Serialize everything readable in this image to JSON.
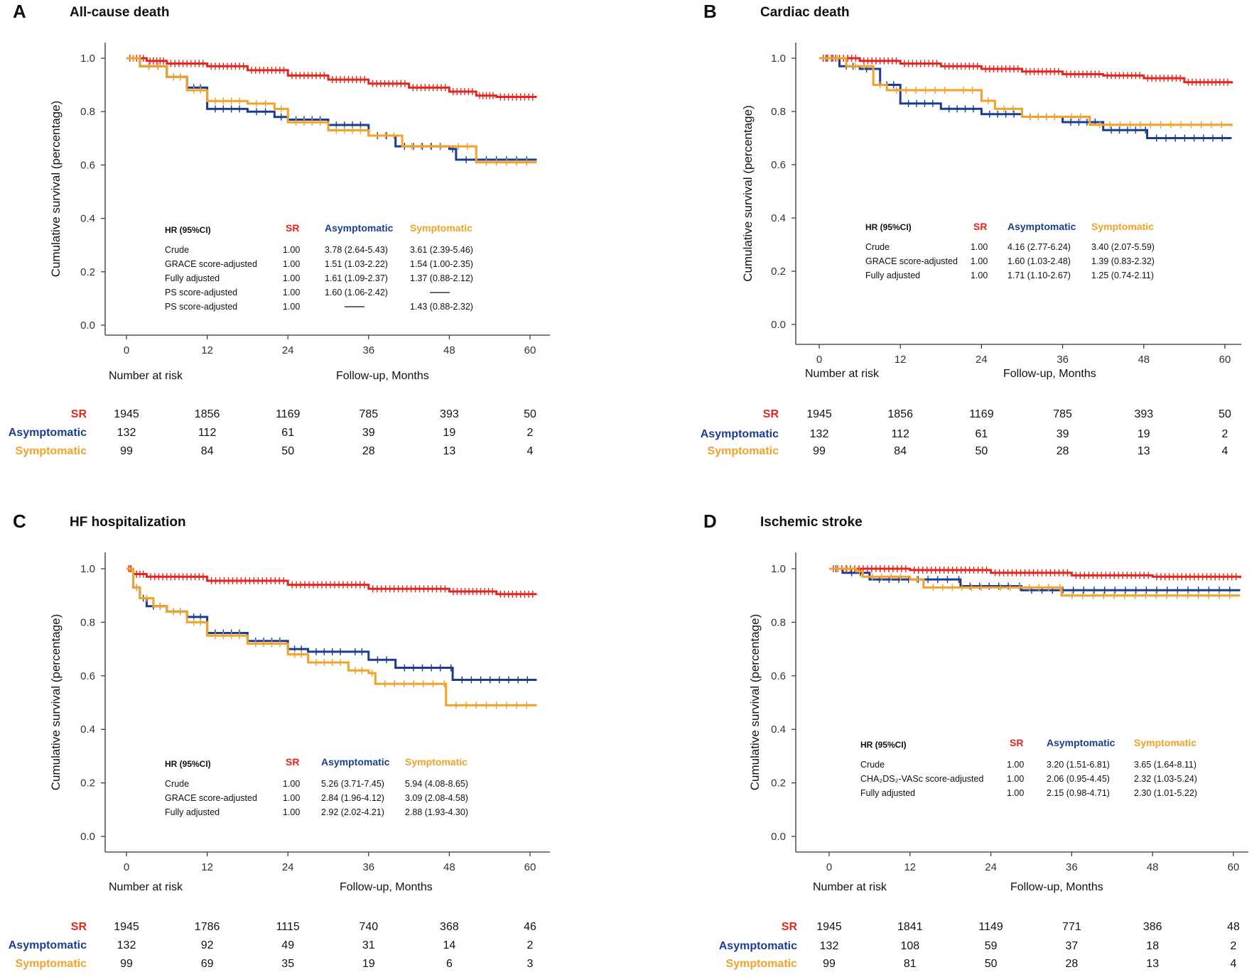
{
  "colors": {
    "SR": "#e4261f",
    "Asymptomatic": "#1c3d92",
    "Symptomatic": "#f2a228",
    "axis": "#333333"
  },
  "chart_data": [
    {
      "type": "line",
      "panel": "A",
      "title": "All-cause death",
      "ylabel": "Cumulative survival (percentage)",
      "xlabel": "Follow-up, Months",
      "ylim": [
        0,
        1
      ],
      "xlim": [
        0,
        60
      ],
      "yticks": [
        "0.0",
        "0.2",
        "0.4",
        "0.6",
        "0.8",
        "1.0"
      ],
      "xticks": [
        "0",
        "12",
        "24",
        "36",
        "48",
        "60"
      ],
      "series": [
        {
          "name": "SR",
          "key": "SR",
          "points": [
            [
              0,
              1
            ],
            [
              3,
              0.99
            ],
            [
              6,
              0.98
            ],
            [
              12,
              0.97
            ],
            [
              18,
              0.955
            ],
            [
              24,
              0.935
            ],
            [
              30,
              0.92
            ],
            [
              36,
              0.905
            ],
            [
              42,
              0.89
            ],
            [
              48,
              0.875
            ],
            [
              52,
              0.86
            ],
            [
              55,
              0.855
            ],
            [
              61,
              0.855
            ]
          ]
        },
        {
          "name": "Asymptomatic",
          "key": "Asymptomatic",
          "points": [
            [
              0,
              1
            ],
            [
              2,
              0.97
            ],
            [
              6,
              0.93
            ],
            [
              9,
              0.89
            ],
            [
              12,
              0.81
            ],
            [
              18,
              0.8
            ],
            [
              22,
              0.78
            ],
            [
              24,
              0.77
            ],
            [
              30,
              0.75
            ],
            [
              36,
              0.71
            ],
            [
              40,
              0.67
            ],
            [
              48,
              0.66
            ],
            [
              49,
              0.62
            ],
            [
              61,
              0.62
            ]
          ]
        },
        {
          "name": "Symptomatic",
          "key": "Symptomatic",
          "points": [
            [
              0,
              1
            ],
            [
              2,
              0.97
            ],
            [
              6,
              0.93
            ],
            [
              9,
              0.88
            ],
            [
              12,
              0.84
            ],
            [
              18,
              0.83
            ],
            [
              22,
              0.81
            ],
            [
              24,
              0.76
            ],
            [
              30,
              0.73
            ],
            [
              36,
              0.71
            ],
            [
              41,
              0.67
            ],
            [
              48,
              0.67
            ],
            [
              52,
              0.61
            ],
            [
              61,
              0.61
            ]
          ]
        }
      ],
      "hr_table": {
        "header": "HR (95%CI)",
        "columns": [
          "SR",
          "Asymptomatic",
          "Symptomatic"
        ],
        "rows": [
          {
            "label": "Crude",
            "sr": "1.00",
            "asym": "3.78 (2.64-5.43)",
            "sym": "3.61 (2.39-5.46)"
          },
          {
            "label": "GRACE score-adjusted",
            "sr": "1.00",
            "asym": "1.51 (1.03-2.22)",
            "sym": "1.54 (1.00-2.35)"
          },
          {
            "label": "Fully adjusted",
            "sr": "1.00",
            "asym": "1.61 (1.09-2.37)",
            "sym": "1.37 (0.88-2.12)"
          },
          {
            "label": "PS score-adjusted",
            "sr": "1.00",
            "asym": "1.60 (1.06-2.42)",
            "sym": "—"
          },
          {
            "label": "PS score-adjusted",
            "sr": "1.00",
            "asym": "—",
            "sym": "1.43 (0.88-2.32)"
          }
        ]
      },
      "risk_table": {
        "caption": "Number at risk",
        "rows": [
          {
            "label": "SR",
            "key": "SR",
            "values": [
              "1945",
              "1856",
              "1169",
              "785",
              "393",
              "50"
            ]
          },
          {
            "label": "Asymptomatic",
            "key": "Asymptomatic",
            "values": [
              "132",
              "112",
              "61",
              "39",
              "19",
              "2"
            ]
          },
          {
            "label": "Symptomatic",
            "key": "Symptomatic",
            "values": [
              "99",
              "84",
              "50",
              "28",
              "13",
              "4"
            ]
          }
        ]
      }
    },
    {
      "type": "line",
      "panel": "B",
      "title": "Cardiac death",
      "ylabel": "Cumulative survival (percentage)",
      "xlabel": "Follow-up, Months",
      "ylim": [
        0,
        1
      ],
      "xlim": [
        0,
        60
      ],
      "yticks": [
        "0.0",
        "0.2",
        "0.4",
        "0.6",
        "0.8",
        "1.0"
      ],
      "xticks": [
        "0",
        "12",
        "24",
        "36",
        "48",
        "60"
      ],
      "series": [
        {
          "name": "SR",
          "key": "SR",
          "points": [
            [
              0,
              1
            ],
            [
              6,
              0.99
            ],
            [
              12,
              0.98
            ],
            [
              18,
              0.97
            ],
            [
              24,
              0.96
            ],
            [
              30,
              0.95
            ],
            [
              36,
              0.94
            ],
            [
              42,
              0.935
            ],
            [
              48,
              0.925
            ],
            [
              54,
              0.91
            ],
            [
              61,
              0.905
            ]
          ]
        },
        {
          "name": "Asymptomatic",
          "key": "Asymptomatic",
          "points": [
            [
              0,
              1
            ],
            [
              3,
              0.97
            ],
            [
              6,
              0.96
            ],
            [
              9,
              0.9
            ],
            [
              12,
              0.83
            ],
            [
              18,
              0.81
            ],
            [
              24,
              0.79
            ],
            [
              30,
              0.78
            ],
            [
              36,
              0.76
            ],
            [
              42,
              0.73
            ],
            [
              48,
              0.73
            ],
            [
              48.5,
              0.7
            ],
            [
              61,
              0.7
            ]
          ]
        },
        {
          "name": "Symptomatic",
          "key": "Symptomatic",
          "points": [
            [
              0,
              1
            ],
            [
              4,
              0.97
            ],
            [
              8,
              0.9
            ],
            [
              10,
              0.88
            ],
            [
              20,
              0.88
            ],
            [
              24,
              0.84
            ],
            [
              26,
              0.81
            ],
            [
              30,
              0.78
            ],
            [
              36,
              0.78
            ],
            [
              40,
              0.75
            ],
            [
              61,
              0.745
            ]
          ]
        }
      ],
      "hr_table": {
        "header": "HR (95%CI)",
        "columns": [
          "SR",
          "Asymptomatic",
          "Symptomatic"
        ],
        "rows": [
          {
            "label": "Crude",
            "sr": "1.00",
            "asym": "4.16 (2.77-6.24)",
            "sym": "3.40 (2.07-5.59)"
          },
          {
            "label": "GRACE score-adjusted",
            "sr": "1.00",
            "asym": "1.60 (1.03-2.48)",
            "sym": "1.39 (0.83-2.32)"
          },
          {
            "label": "Fully adjusted",
            "sr": "1.00",
            "asym": "1.71 (1.10-2.67)",
            "sym": "1.25 (0.74-2.11)"
          }
        ]
      },
      "risk_table": {
        "caption": "Number at risk",
        "rows": [
          {
            "label": "SR",
            "key": "SR",
            "values": [
              "1945",
              "1856",
              "1169",
              "785",
              "393",
              "50"
            ]
          },
          {
            "label": "Asymptomatic",
            "key": "Asymptomatic",
            "values": [
              "132",
              "112",
              "61",
              "39",
              "19",
              "2"
            ]
          },
          {
            "label": "Symptomatic",
            "key": "Symptomatic",
            "values": [
              "99",
              "84",
              "50",
              "28",
              "13",
              "4"
            ]
          }
        ]
      }
    },
    {
      "type": "line",
      "panel": "C",
      "title": "HF hospitalization",
      "ylabel": "Cumulative survival (percentage)",
      "xlabel": "Follow-up, Months",
      "ylim": [
        0,
        1
      ],
      "xlim": [
        0,
        60
      ],
      "yticks": [
        "0.0",
        "0.2",
        "0.4",
        "0.6",
        "0.8",
        "1.0"
      ],
      "xticks": [
        "0",
        "12",
        "24",
        "36",
        "48",
        "60"
      ],
      "series": [
        {
          "name": "SR",
          "key": "SR",
          "points": [
            [
              0,
              1
            ],
            [
              1,
              0.98
            ],
            [
              3,
              0.97
            ],
            [
              12,
              0.955
            ],
            [
              24,
              0.94
            ],
            [
              36,
              0.925
            ],
            [
              48,
              0.915
            ],
            [
              55,
              0.905
            ],
            [
              61,
              0.905
            ]
          ]
        },
        {
          "name": "Asymptomatic",
          "key": "Asymptomatic",
          "points": [
            [
              0,
              1
            ],
            [
              1,
              0.93
            ],
            [
              2,
              0.89
            ],
            [
              3,
              0.86
            ],
            [
              6,
              0.84
            ],
            [
              9,
              0.82
            ],
            [
              12,
              0.76
            ],
            [
              18,
              0.73
            ],
            [
              24,
              0.7
            ],
            [
              27,
              0.69
            ],
            [
              33,
              0.69
            ],
            [
              36,
              0.66
            ],
            [
              40,
              0.63
            ],
            [
              48,
              0.63
            ],
            [
              48.5,
              0.585
            ],
            [
              61,
              0.585
            ]
          ]
        },
        {
          "name": "Symptomatic",
          "key": "Symptomatic",
          "points": [
            [
              0,
              1
            ],
            [
              1,
              0.93
            ],
            [
              2,
              0.89
            ],
            [
              4,
              0.86
            ],
            [
              6,
              0.84
            ],
            [
              9,
              0.8
            ],
            [
              12,
              0.75
            ],
            [
              18,
              0.72
            ],
            [
              24,
              0.68
            ],
            [
              27,
              0.65
            ],
            [
              33,
              0.62
            ],
            [
              36,
              0.61
            ],
            [
              37,
              0.57
            ],
            [
              47,
              0.57
            ],
            [
              47.5,
              0.49
            ],
            [
              61,
              0.49
            ]
          ]
        }
      ],
      "hr_table": {
        "header": "HR (95%CI)",
        "columns": [
          "SR",
          "Asymptomatic",
          "Symptomatic"
        ],
        "rows": [
          {
            "label": "Crude",
            "sr": "1.00",
            "asym": "5.26 (3.71-7.45)",
            "sym": "5.94 (4.08-8.65)"
          },
          {
            "label": "GRACE score-adjusted",
            "sr": "1.00",
            "asym": "2.84 (1.96-4.12)",
            "sym": "3.09 (2.08-4.58)"
          },
          {
            "label": "Fully adjusted",
            "sr": "1.00",
            "asym": "2.92 (2.02-4.21)",
            "sym": "2.88 (1.93-4.30)"
          }
        ]
      },
      "risk_table": {
        "caption": "Number at risk",
        "rows": [
          {
            "label": "SR",
            "key": "SR",
            "values": [
              "1945",
              "1786",
              "1115",
              "740",
              "368",
              "46"
            ]
          },
          {
            "label": "Asymptomatic",
            "key": "Asymptomatic",
            "values": [
              "132",
              "92",
              "49",
              "31",
              "14",
              "2"
            ]
          },
          {
            "label": "Symptomatic",
            "key": "Symptomatic",
            "values": [
              "99",
              "69",
              "35",
              "19",
              "6",
              "3"
            ]
          }
        ]
      }
    },
    {
      "type": "line",
      "panel": "D",
      "title": "Ischemic stroke",
      "ylabel": "Cumulative survival (percentage)",
      "xlabel": "Follow-up, Months",
      "ylim": [
        0,
        1
      ],
      "xlim": [
        0,
        60
      ],
      "yticks": [
        "0.0",
        "0.2",
        "0.4",
        "0.6",
        "0.8",
        "1.0"
      ],
      "xticks": [
        "0",
        "12",
        "24",
        "36",
        "48",
        "60"
      ],
      "series": [
        {
          "name": "SR",
          "key": "SR",
          "points": [
            [
              0,
              1
            ],
            [
              12,
              0.995
            ],
            [
              24,
              0.985
            ],
            [
              36,
              0.975
            ],
            [
              48,
              0.97
            ],
            [
              61,
              0.965
            ]
          ]
        },
        {
          "name": "Asymptomatic",
          "key": "Asymptomatic",
          "points": [
            [
              0,
              1
            ],
            [
              2,
              0.985
            ],
            [
              6,
              0.96
            ],
            [
              19,
              0.96
            ],
            [
              19.5,
              0.935
            ],
            [
              28,
              0.935
            ],
            [
              28.5,
              0.92
            ],
            [
              61,
              0.92
            ]
          ]
        },
        {
          "name": "Symptomatic",
          "key": "Symptomatic",
          "points": [
            [
              0,
              1
            ],
            [
              4,
              0.99
            ],
            [
              5,
              0.97
            ],
            [
              12,
              0.96
            ],
            [
              14,
              0.93
            ],
            [
              24,
              0.93
            ],
            [
              34,
              0.93
            ],
            [
              34.5,
              0.9
            ],
            [
              61,
              0.9
            ]
          ]
        }
      ],
      "hr_table": {
        "header": "HR (95%CI)",
        "columns": [
          "SR",
          "Asymptomatic",
          "Symptomatic"
        ],
        "rows": [
          {
            "label": "Crude",
            "sr": "1.00",
            "asym": "3.20 (1.51-6.81)",
            "sym": "3.65 (1.64-8.11)"
          },
          {
            "label": "CHA₂DS₂-VASc score-adjusted",
            "sr": "1.00",
            "asym": "2.06 (0.95-4.45)",
            "sym": "2.32 (1.03-5.24)"
          },
          {
            "label": "Fully adjusted",
            "sr": "1.00",
            "asym": "2.15 (0.98-4.71)",
            "sym": "2.30 (1.01-5.22)"
          }
        ]
      },
      "risk_table": {
        "caption": "Number at risk",
        "rows": [
          {
            "label": "SR",
            "key": "SR",
            "values": [
              "1945",
              "1841",
              "1149",
              "771",
              "386",
              "48"
            ]
          },
          {
            "label": "Asymptomatic",
            "key": "Asymptomatic",
            "values": [
              "132",
              "108",
              "59",
              "37",
              "18",
              "2"
            ]
          },
          {
            "label": "Symptomatic",
            "key": "Symptomatic",
            "values": [
              "99",
              "81",
              "50",
              "28",
              "13",
              "4"
            ]
          }
        ]
      }
    }
  ]
}
